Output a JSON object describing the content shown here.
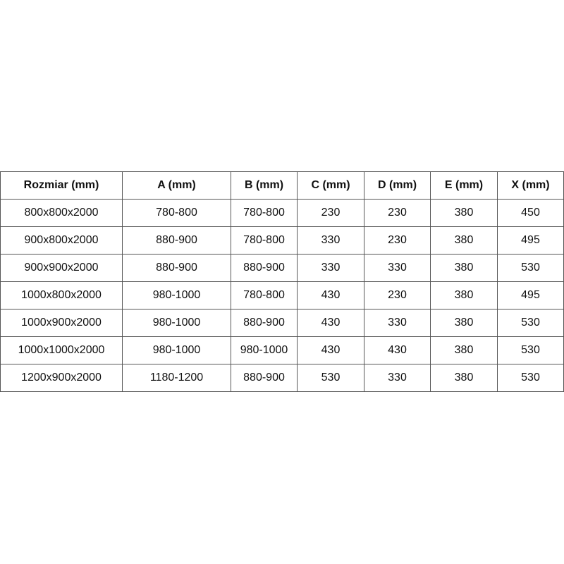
{
  "table": {
    "headers": [
      "Rozmiar (mm)",
      "A (mm)",
      "B (mm)",
      "C (mm)",
      "D (mm)",
      "E (mm)",
      "X (mm)"
    ],
    "rows": [
      [
        "800x800x2000",
        "780-800",
        "780-800",
        "230",
        "230",
        "380",
        "450"
      ],
      [
        "900x800x2000",
        "880-900",
        "780-800",
        "330",
        "230",
        "380",
        "495"
      ],
      [
        "900x900x2000",
        "880-900",
        "880-900",
        "330",
        "330",
        "380",
        "530"
      ],
      [
        "1000x800x2000",
        "980-1000",
        "780-800",
        "430",
        "230",
        "380",
        "495"
      ],
      [
        "1000x900x2000",
        "980-1000",
        "880-900",
        "430",
        "330",
        "380",
        "530"
      ],
      [
        "1000x1000x2000",
        "980-1000",
        "980-1000",
        "430",
        "430",
        "380",
        "530"
      ],
      [
        "1200x900x2000",
        "1180-1200",
        "880-900",
        "530",
        "330",
        "380",
        "530"
      ]
    ]
  }
}
